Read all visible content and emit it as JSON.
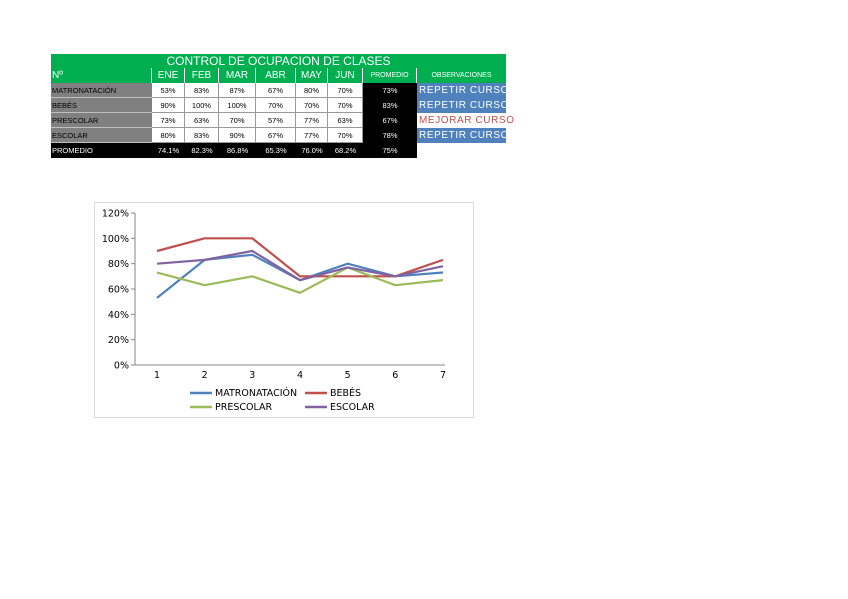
{
  "table": {
    "title": "CONTROL DE OCUPACION DE CLASES",
    "headers": [
      "Nº",
      "ENE",
      "FEB",
      "MAR",
      "ABR",
      "MAY",
      "JUN",
      "PROMEDIO",
      "OBSERVACIONES"
    ],
    "rows": [
      {
        "name": "MATRONATACIÓN",
        "values": [
          "53%",
          "83%",
          "87%",
          "67%",
          "80%",
          "70%"
        ],
        "avg": "73%",
        "obs": "REPETIR CURSO"
      },
      {
        "name": "BEBÉS",
        "values": [
          "90%",
          "100%",
          "100%",
          "70%",
          "70%",
          "70%"
        ],
        "avg": "83%",
        "obs": "REPETIR CURSO"
      },
      {
        "name": "PRESCOLAR",
        "values": [
          "73%",
          "63%",
          "70%",
          "57%",
          "77%",
          "63%"
        ],
        "avg": "67%",
        "obs": "MEJORAR CURSO"
      },
      {
        "name": "ESCOLAR",
        "values": [
          "80%",
          "83%",
          "90%",
          "67%",
          "77%",
          "70%"
        ],
        "avg": "78%",
        "obs": "REPETIR CURSO"
      }
    ],
    "footer": {
      "label": "PROMEDIO",
      "values": [
        "74.1%",
        "82.3%",
        "86.8%",
        "65.3%",
        "76.0%",
        "68.2%"
      ],
      "avg": "75%"
    }
  },
  "colors": {
    "header_green": "#00b050",
    "obs_blue": "#4f81bd",
    "obs_warn_red": "#c0504d"
  },
  "chart_data": {
    "type": "line",
    "x": [
      1,
      2,
      3,
      4,
      5,
      6,
      7
    ],
    "xlim": [
      1,
      7
    ],
    "ylim": [
      0,
      120
    ],
    "yticks": [
      "0%",
      "20%",
      "40%",
      "60%",
      "80%",
      "100%",
      "120%"
    ],
    "grid": false,
    "legend_position": "bottom",
    "series": [
      {
        "name": "MATRONATACIÓN",
        "color": "#4f81bd",
        "values": [
          53,
          83,
          87,
          67,
          80,
          70,
          73
        ]
      },
      {
        "name": "BEBÉS",
        "color": "#c0504d",
        "values": [
          90,
          100,
          100,
          70,
          70,
          70,
          83
        ]
      },
      {
        "name": "PRESCOLAR",
        "color": "#9bbb59",
        "values": [
          73,
          63,
          70,
          57,
          77,
          63,
          67
        ]
      },
      {
        "name": "ESCOLAR",
        "color": "#8064a2",
        "values": [
          80,
          83,
          90,
          67,
          77,
          70,
          78
        ]
      }
    ]
  }
}
